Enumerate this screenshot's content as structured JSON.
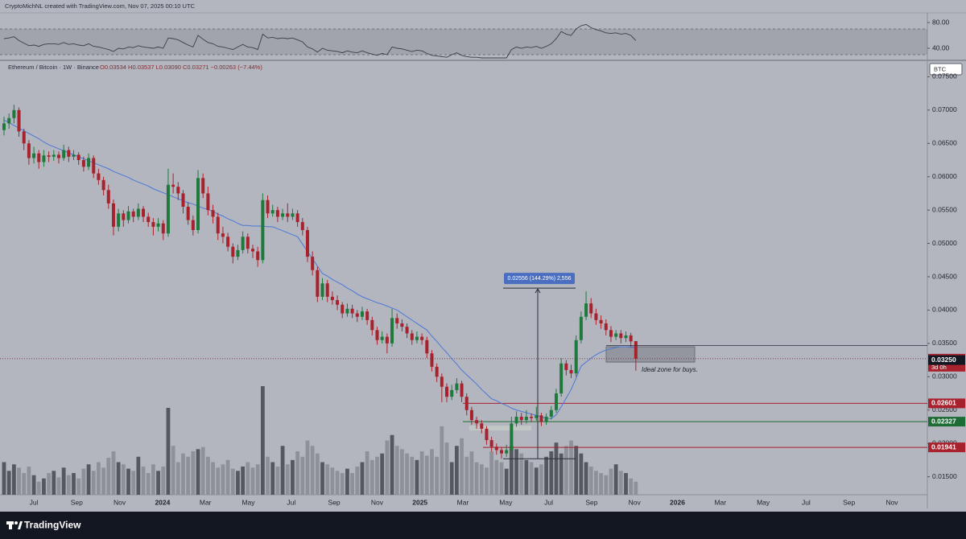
{
  "chart_data": {
    "type": "candlestick",
    "header": "CryptoMichNL created with TradingView.com, Nov 07, 2025 00:10 UTC",
    "symbol": "Ethereum / Bitcoin · 1W · Binance",
    "ohlc_text": "O0.03534 H0.03537 L0.03090 C0.03271 −0.00263 (−7.44%)",
    "currency": "BTC",
    "footer": "TradingView",
    "colors": {
      "up": "#1d7a3c",
      "down": "#a8222e",
      "ma": "#4a78d8",
      "rsi": "#3b3e46",
      "vol_up": "#56585f",
      "vol_down": "#8e9199"
    },
    "ylim": [
      0.0123,
      0.0771
    ],
    "yticks": [
      {
        "value": 0.015,
        "label": "0.01500"
      },
      {
        "value": 0.02,
        "label": "0.02000"
      },
      {
        "value": 0.025,
        "label": "0.02500"
      },
      {
        "value": 0.03,
        "label": "0.03000"
      },
      {
        "value": 0.035,
        "label": "0.03500"
      },
      {
        "value": 0.04,
        "label": "0.04000"
      },
      {
        "value": 0.045,
        "label": "0.04500"
      },
      {
        "value": 0.05,
        "label": "0.05000"
      },
      {
        "value": 0.055,
        "label": "0.05500"
      },
      {
        "value": 0.06,
        "label": "0.06000"
      },
      {
        "value": 0.065,
        "label": "0.06500"
      },
      {
        "value": 0.07,
        "label": "0.07000"
      },
      {
        "value": 0.075,
        "label": "0.07500"
      }
    ],
    "rsi_ylim": [
      25,
      92.5
    ],
    "rsi_yticks": [
      {
        "value": 40,
        "label": "40.00"
      },
      {
        "value": 80,
        "label": "80.00"
      }
    ],
    "rsi_band": [
      30,
      70
    ],
    "volume_ylim": [
      0,
      100
    ],
    "x_labels": [
      "Jul",
      "Sep",
      "Nov",
      "2024",
      "Mar",
      "May",
      "Jul",
      "Sep",
      "Nov",
      "2025",
      "Mar",
      "May",
      "Jul",
      "Sep",
      "Nov",
      "2026",
      "Mar",
      "May",
      "Jul",
      "Sep",
      "Nov"
    ],
    "candles": [
      [
        0.067,
        0.069,
        0.0662,
        0.068
      ],
      [
        0.068,
        0.0695,
        0.0672,
        0.0688
      ],
      [
        0.0688,
        0.0708,
        0.068,
        0.07
      ],
      [
        0.07,
        0.0704,
        0.066,
        0.0668
      ],
      [
        0.0668,
        0.0672,
        0.064,
        0.065
      ],
      [
        0.065,
        0.0655,
        0.0618,
        0.0628
      ],
      [
        0.0628,
        0.0645,
        0.062,
        0.0635
      ],
      [
        0.0635,
        0.064,
        0.0612,
        0.0622
      ],
      [
        0.0622,
        0.064,
        0.0615,
        0.0632
      ],
      [
        0.0632,
        0.0638,
        0.0622,
        0.063
      ],
      [
        0.063,
        0.064,
        0.0624,
        0.0633
      ],
      [
        0.0633,
        0.0638,
        0.062,
        0.0628
      ],
      [
        0.0628,
        0.0648,
        0.0624,
        0.064
      ],
      [
        0.064,
        0.0645,
        0.0622,
        0.063
      ],
      [
        0.063,
        0.064,
        0.0625,
        0.0633
      ],
      [
        0.0633,
        0.0637,
        0.0618,
        0.0625
      ],
      [
        0.0625,
        0.063,
        0.0608,
        0.0615
      ],
      [
        0.0615,
        0.0635,
        0.061,
        0.0628
      ],
      [
        0.0628,
        0.0632,
        0.0598,
        0.0605
      ],
      [
        0.0605,
        0.0612,
        0.0588,
        0.0595
      ],
      [
        0.0595,
        0.06,
        0.0572,
        0.058
      ],
      [
        0.058,
        0.0588,
        0.0552,
        0.056
      ],
      [
        0.056,
        0.0566,
        0.0512,
        0.0525
      ],
      [
        0.0525,
        0.0552,
        0.0518,
        0.0545
      ],
      [
        0.0545,
        0.055,
        0.0525,
        0.0535
      ],
      [
        0.0535,
        0.0556,
        0.053,
        0.0548
      ],
      [
        0.0548,
        0.0552,
        0.0532,
        0.054
      ],
      [
        0.054,
        0.056,
        0.0535,
        0.0552
      ],
      [
        0.0552,
        0.0556,
        0.0532,
        0.054
      ],
      [
        0.054,
        0.0546,
        0.0525,
        0.0532
      ],
      [
        0.0532,
        0.0538,
        0.0512,
        0.0525
      ],
      [
        0.0525,
        0.0538,
        0.0518,
        0.053
      ],
      [
        0.053,
        0.0535,
        0.0505,
        0.0515
      ],
      [
        0.0515,
        0.0612,
        0.051,
        0.0588
      ],
      [
        0.0588,
        0.0605,
        0.0575,
        0.0585
      ],
      [
        0.0585,
        0.0592,
        0.0565,
        0.0575
      ],
      [
        0.0575,
        0.058,
        0.0545,
        0.0555
      ],
      [
        0.0555,
        0.0562,
        0.0528,
        0.0535
      ],
      [
        0.0535,
        0.0542,
        0.0512,
        0.052
      ],
      [
        0.052,
        0.061,
        0.0515,
        0.0598
      ],
      [
        0.0598,
        0.0605,
        0.0568,
        0.0575
      ],
      [
        0.0575,
        0.0585,
        0.0542,
        0.055
      ],
      [
        0.055,
        0.0558,
        0.053,
        0.054
      ],
      [
        0.054,
        0.0546,
        0.0505,
        0.0515
      ],
      [
        0.0515,
        0.0525,
        0.05,
        0.051
      ],
      [
        0.051,
        0.0516,
        0.0488,
        0.0495
      ],
      [
        0.0495,
        0.05,
        0.047,
        0.048
      ],
      [
        0.048,
        0.0498,
        0.0475,
        0.049
      ],
      [
        0.049,
        0.0518,
        0.0485,
        0.051
      ],
      [
        0.051,
        0.0515,
        0.0485,
        0.0492
      ],
      [
        0.0492,
        0.0498,
        0.0478,
        0.0488
      ],
      [
        0.0488,
        0.0495,
        0.0465,
        0.0475
      ],
      [
        0.0475,
        0.0575,
        0.047,
        0.0565
      ],
      [
        0.0565,
        0.0572,
        0.0538,
        0.0545
      ],
      [
        0.0545,
        0.0558,
        0.054,
        0.055
      ],
      [
        0.055,
        0.0555,
        0.0532,
        0.054
      ],
      [
        0.054,
        0.0552,
        0.0535,
        0.0545
      ],
      [
        0.0545,
        0.056,
        0.0532,
        0.054
      ],
      [
        0.054,
        0.0552,
        0.0535,
        0.0545
      ],
      [
        0.0545,
        0.055,
        0.0525,
        0.0532
      ],
      [
        0.0532,
        0.0538,
        0.0512,
        0.052
      ],
      [
        0.052,
        0.0525,
        0.0472,
        0.048
      ],
      [
        0.048,
        0.0488,
        0.0452,
        0.046
      ],
      [
        0.046,
        0.0465,
        0.0412,
        0.042
      ],
      [
        0.042,
        0.0448,
        0.0415,
        0.044
      ],
      [
        0.044,
        0.0445,
        0.0412,
        0.042
      ],
      [
        0.042,
        0.0428,
        0.0408,
        0.0415
      ],
      [
        0.0415,
        0.0422,
        0.04,
        0.0408
      ],
      [
        0.0408,
        0.0412,
        0.0388,
        0.0395
      ],
      [
        0.0395,
        0.041,
        0.039,
        0.0402
      ],
      [
        0.0402,
        0.0408,
        0.0388,
        0.0395
      ],
      [
        0.0395,
        0.04,
        0.0382,
        0.039
      ],
      [
        0.039,
        0.0405,
        0.0385,
        0.0398
      ],
      [
        0.0398,
        0.0402,
        0.0378,
        0.0385
      ],
      [
        0.0385,
        0.039,
        0.0362,
        0.037
      ],
      [
        0.037,
        0.0375,
        0.0348,
        0.0355
      ],
      [
        0.0355,
        0.0368,
        0.035,
        0.036
      ],
      [
        0.036,
        0.0365,
        0.0335,
        0.035
      ],
      [
        0.035,
        0.0402,
        0.0345,
        0.0388
      ],
      [
        0.0388,
        0.0395,
        0.0372,
        0.038
      ],
      [
        0.038,
        0.0386,
        0.0368,
        0.0375
      ],
      [
        0.0375,
        0.038,
        0.0358,
        0.0365
      ],
      [
        0.0365,
        0.037,
        0.0348,
        0.0355
      ],
      [
        0.0355,
        0.0368,
        0.035,
        0.036
      ],
      [
        0.036,
        0.0365,
        0.0348,
        0.0355
      ],
      [
        0.0355,
        0.036,
        0.0328,
        0.0335
      ],
      [
        0.0335,
        0.034,
        0.0308,
        0.0315
      ],
      [
        0.0315,
        0.032,
        0.0292,
        0.03
      ],
      [
        0.03,
        0.0305,
        0.0262,
        0.0285
      ],
      [
        0.0285,
        0.029,
        0.0262,
        0.027
      ],
      [
        0.027,
        0.0288,
        0.0265,
        0.028
      ],
      [
        0.028,
        0.0298,
        0.0275,
        0.029
      ],
      [
        0.029,
        0.0294,
        0.0262,
        0.027
      ],
      [
        0.027,
        0.0275,
        0.0242,
        0.025
      ],
      [
        0.025,
        0.0255,
        0.0228,
        0.0235
      ],
      [
        0.0235,
        0.024,
        0.0222,
        0.023
      ],
      [
        0.023,
        0.0235,
        0.0215,
        0.0222
      ],
      [
        0.0222,
        0.0226,
        0.0198,
        0.0205
      ],
      [
        0.0205,
        0.021,
        0.0188,
        0.0195
      ],
      [
        0.0195,
        0.02,
        0.0183,
        0.019
      ],
      [
        0.019,
        0.0195,
        0.0177,
        0.0185
      ],
      [
        0.0185,
        0.0198,
        0.018,
        0.019
      ],
      [
        0.019,
        0.024,
        0.0186,
        0.023
      ],
      [
        0.023,
        0.0248,
        0.0225,
        0.024
      ],
      [
        0.024,
        0.0246,
        0.0228,
        0.0235
      ],
      [
        0.0235,
        0.025,
        0.023,
        0.024
      ],
      [
        0.024,
        0.0245,
        0.0232,
        0.0238
      ],
      [
        0.0238,
        0.0255,
        0.0234,
        0.0242
      ],
      [
        0.0242,
        0.0246,
        0.0226,
        0.0232
      ],
      [
        0.0232,
        0.0245,
        0.0228,
        0.024
      ],
      [
        0.024,
        0.0256,
        0.0236,
        0.025
      ],
      [
        0.025,
        0.0282,
        0.0246,
        0.0275
      ],
      [
        0.0275,
        0.0328,
        0.027,
        0.032
      ],
      [
        0.032,
        0.0325,
        0.0302,
        0.031
      ],
      [
        0.031,
        0.0318,
        0.0298,
        0.0305
      ],
      [
        0.0305,
        0.0362,
        0.03,
        0.0355
      ],
      [
        0.0355,
        0.0398,
        0.035,
        0.039
      ],
      [
        0.039,
        0.0428,
        0.0385,
        0.041
      ],
      [
        0.041,
        0.0418,
        0.0388,
        0.0395
      ],
      [
        0.0395,
        0.0402,
        0.0378,
        0.0385
      ],
      [
        0.0385,
        0.0392,
        0.0372,
        0.038
      ],
      [
        0.038,
        0.0386,
        0.0362,
        0.037
      ],
      [
        0.037,
        0.0376,
        0.0352,
        0.036
      ],
      [
        0.036,
        0.037,
        0.0355,
        0.0365
      ],
      [
        0.0365,
        0.037,
        0.035,
        0.0358
      ],
      [
        0.0358,
        0.0368,
        0.0352,
        0.0362
      ],
      [
        0.0362,
        0.0366,
        0.0345,
        0.0353
      ],
      [
        0.03534,
        0.03537,
        0.0309,
        0.03271
      ]
    ],
    "volume": [
      30,
      22,
      28,
      25,
      20,
      26,
      18,
      12,
      15,
      20,
      22,
      16,
      25,
      18,
      20,
      15,
      24,
      28,
      22,
      30,
      25,
      34,
      40,
      30,
      28,
      24,
      22,
      35,
      26,
      20,
      28,
      22,
      26,
      80,
      45,
      30,
      38,
      35,
      40,
      42,
      44,
      35,
      30,
      25,
      28,
      32,
      24,
      22,
      26,
      30,
      25,
      28,
      100,
      35,
      30,
      26,
      45,
      28,
      32,
      40,
      35,
      50,
      45,
      38,
      30,
      28,
      25,
      22,
      20,
      24,
      20,
      26,
      30,
      40,
      32,
      35,
      38,
      50,
      55,
      45,
      42,
      38,
      35,
      32,
      40,
      36,
      42,
      35,
      63,
      48,
      30,
      45,
      52,
      35,
      40,
      30,
      28,
      25,
      40,
      32,
      30,
      24,
      45,
      42,
      38,
      32,
      30,
      25,
      28,
      35,
      40,
      48,
      38,
      45,
      50,
      45,
      38,
      30,
      26,
      22,
      20,
      18,
      24,
      28,
      22,
      20,
      15,
      12
    ],
    "ma": [
      0.0685,
      0.0681,
      0.0677,
      0.0673,
      0.0669,
      0.0665,
      0.0661,
      0.0657,
      0.0652,
      0.0648,
      0.0645,
      0.0642,
      0.0639,
      0.0636,
      0.0633,
      0.063,
      0.0627,
      0.0624,
      0.0621,
      0.0618,
      0.0615,
      0.0612,
      0.0608,
      0.0605,
      0.0602,
      0.0599,
      0.0595,
      0.0592,
      0.0589,
      0.0586,
      0.0582,
      0.0579,
      0.0576,
      0.0573,
      0.057,
      0.0567,
      0.0564,
      0.0561,
      0.0559,
      0.0556,
      0.0553,
      0.0551,
      0.0548,
      0.0544,
      0.0541,
      0.0537,
      0.0534,
      0.053,
      0.0527,
      0.0527,
      0.0526,
      0.0526,
      0.0526,
      0.0525,
      0.0525,
      0.0522,
      0.0519,
      0.0516,
      0.0513,
      0.051,
      0.0499,
      0.0488,
      0.0477,
      0.0466,
      0.0455,
      0.0451,
      0.0446,
      0.0442,
      0.0438,
      0.0433,
      0.0429,
      0.0424,
      0.042,
      0.0417,
      0.0414,
      0.0411,
      0.0409,
      0.0406,
      0.0403,
      0.04,
      0.0395,
      0.039,
      0.0385,
      0.038,
      0.0375,
      0.037,
      0.0361,
      0.0353,
      0.0344,
      0.0336,
      0.0327,
      0.0319,
      0.031,
      0.0303,
      0.0296,
      0.0289,
      0.0281,
      0.0274,
      0.0267,
      0.0264,
      0.026,
      0.0257,
      0.0253,
      0.025,
      0.0248,
      0.0246,
      0.0244,
      0.0242,
      0.024,
      0.0238,
      0.0237,
      0.0243,
      0.0255,
      0.0268,
      0.0281,
      0.0298,
      0.0316,
      0.0322,
      0.0328,
      0.0333,
      0.0337,
      0.034,
      0.0342,
      0.0344,
      0.0345,
      0.0345,
      0.0344,
      0.0344
    ],
    "rsi": [
      55,
      56,
      58,
      52,
      48,
      44,
      45,
      43,
      46,
      47,
      47,
      46,
      49,
      46,
      47,
      45,
      44,
      47,
      43,
      42,
      40,
      38,
      35,
      40,
      39,
      42,
      41,
      44,
      42,
      41,
      40,
      42,
      40,
      56,
      55,
      53,
      49,
      45,
      42,
      60,
      54,
      49,
      47,
      43,
      42,
      40,
      38,
      42,
      46,
      42,
      41,
      38,
      62,
      56,
      57,
      55,
      56,
      55,
      56,
      53,
      50,
      42,
      39,
      34,
      40,
      37,
      36,
      35,
      33,
      36,
      34,
      33,
      36,
      33,
      31,
      29,
      32,
      30,
      42,
      40,
      39,
      37,
      35,
      37,
      36,
      32,
      29,
      28,
      27,
      26,
      30,
      33,
      29,
      27,
      26,
      26,
      25,
      25,
      25,
      25,
      25,
      25,
      38,
      42,
      40,
      42,
      41,
      43,
      40,
      43,
      47,
      55,
      66,
      62,
      60,
      70,
      75,
      77,
      72,
      69,
      67,
      64,
      63,
      64,
      62,
      63,
      60,
      52
    ],
    "last_price": {
      "value": 0.03271,
      "label": "0.03271"
    },
    "countdown": "3d 0h",
    "marker_price": {
      "value": 0.0325,
      "label": "0.03250"
    },
    "levels": [
      {
        "value": 0.02601,
        "label": "0.02601",
        "color": "#a8222e"
      },
      {
        "value": 0.02327,
        "label": "0.02327",
        "color": "#1d6b35"
      },
      {
        "value": 0.01941,
        "label": "0.01941",
        "color": "#a8222e"
      }
    ],
    "zone": [
      0.0322,
      0.0345
    ],
    "note": "Ideal zone for buys.",
    "measure": {
      "from": 0.0177,
      "to": 0.0433,
      "label": "0.02556 (144.29%) 2,556"
    }
  }
}
